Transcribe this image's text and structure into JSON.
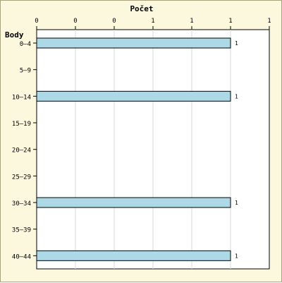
{
  "chart_data": {
    "type": "bar",
    "orientation": "horizontal",
    "title": "Počet",
    "ylabel": "Body",
    "categories": [
      "0–4",
      "5–9",
      "10–14",
      "15–19",
      "20–24",
      "25–29",
      "30–34",
      "35–39",
      "40–44"
    ],
    "values": [
      1,
      0,
      1,
      0,
      0,
      0,
      1,
      0,
      1
    ],
    "data_labels": [
      "1",
      "",
      "1",
      "",
      "",
      "",
      "1",
      "",
      "1"
    ],
    "x_tick_labels": [
      "0",
      "0",
      "0",
      "1",
      "1",
      "1",
      "1"
    ],
    "xlim": [
      0,
      1.2
    ],
    "grid": true,
    "bar_color": "#add8e6",
    "plot_background": "#ffffff",
    "frame_background": "#fbf8de"
  }
}
